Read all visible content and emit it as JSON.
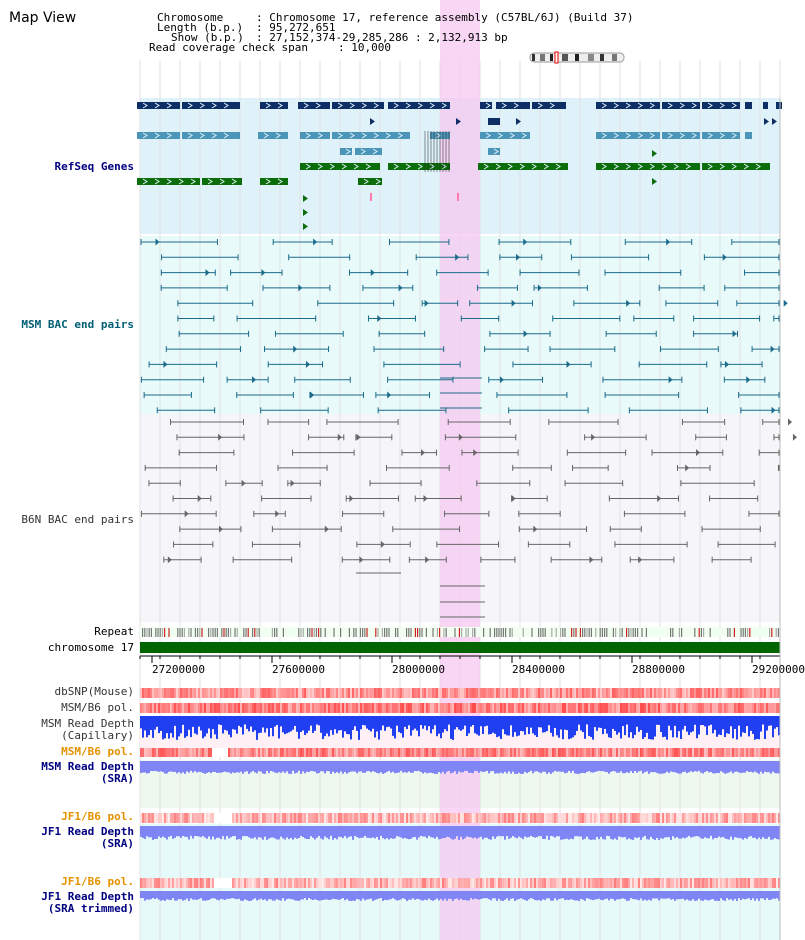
{
  "page": {
    "title": "Map View"
  },
  "info": {
    "chromosome_key": "Chromosome",
    "chromosome_value": ": Chromosome 17, reference assembly (C57BL/6J) (Build 37)",
    "length_key": "Length (b.p.)",
    "length_value": ": 95,272,651",
    "show_key": "Show (b.p.)",
    "show_value": ": 27,152,374-29,285,286 : 2,132,913 bp",
    "coverage_key": "Read coverage check span",
    "coverage_value": ": 10,000"
  },
  "tracks": {
    "refseq": "RefSeq Genes",
    "msm_bac": "MSM BAC end pairs",
    "b6n_bac": "B6N BAC end pairs",
    "repeat": "Repeat",
    "chromosome": "chromosome 17",
    "dbsnp": "dbSNP(Mouse)",
    "msm_b6_pol_1": "MSM/B6 pol.",
    "msm_read_depth_cap": "MSM Read Depth",
    "msm_read_depth_cap_sub": "(Capillary)",
    "msm_b6_pol_2": "MSM/B6 pol.",
    "msm_read_depth_sra": "MSM Read Depth",
    "msm_read_depth_sra_sub": "(SRA)",
    "jf1_b6_pol_1": "JF1/B6 pol.",
    "jf1_read_depth_sra": "JF1 Read Depth",
    "jf1_read_depth_sra_sub": "(SRA)",
    "jf1_b6_pol_2": "JF1/B6 pol.",
    "jf1_read_depth_trim": "JF1 Read Depth",
    "jf1_read_depth_trim_sub": "(SRA trimmed)"
  },
  "axis": {
    "ticks": [
      "27200000",
      "27600000",
      "28000000",
      "28400000",
      "28800000",
      "29200000"
    ]
  },
  "colors": {
    "refseq_bg": "#dff2fa",
    "msm_bg": "#e8fafa",
    "b6n_bg": "#f5f5fa",
    "highlight": "#f5c8f0",
    "chromosome_bar": "#006400",
    "label_navy": "#000080",
    "label_teal": "#005f73",
    "label_orange": "#e69100",
    "label_blue": "#0000c8",
    "refseq_dark": "#0d2f66",
    "refseq_mid": "#4b95b8",
    "refseq_green": "#0b6e0b",
    "msm_pair": "#1b6b8a",
    "b6n_pair": "#666666",
    "depth_blue": "#1f3ff0",
    "depth_lilac": "#7f85f5"
  }
}
